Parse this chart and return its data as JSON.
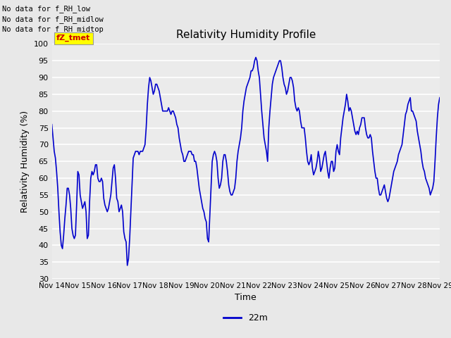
{
  "title": "Relativity Humidity Profile",
  "xlabel": "Time",
  "ylabel": "Relativity Humidity (%)",
  "ylim": [
    30,
    100
  ],
  "yticks": [
    30,
    35,
    40,
    45,
    50,
    55,
    60,
    65,
    70,
    75,
    80,
    85,
    90,
    95,
    100
  ],
  "line_color": "#0000cc",
  "line_width": 1.2,
  "bg_color": "#e8e8e8",
  "plot_bg_color": "#ebebeb",
  "legend_label": "22m",
  "legend_line_color": "#0000cc",
  "no_data_texts": [
    "No data for f_RH_low",
    "No data for f_RH_midlow",
    "No data for f_RH_midtop"
  ],
  "tz_tmet_label": "fZ_tmet",
  "x_start_day": 14,
  "x_end_day": 29,
  "x_tick_days": [
    14,
    15,
    16,
    17,
    18,
    19,
    20,
    21,
    22,
    23,
    24,
    25,
    26,
    27,
    28,
    29
  ],
  "x_tick_labels": [
    "Nov 14",
    "Nov 15",
    "Nov 16",
    "Nov 17",
    "Nov 18",
    "Nov 19",
    "Nov 20",
    "Nov 21",
    "Nov 22",
    "Nov 23",
    "Nov 24",
    "Nov 25",
    "Nov 26",
    "Nov 27",
    "Nov 28",
    "Nov 29"
  ],
  "humidity_values": [
    76,
    72,
    68,
    66,
    62,
    57,
    50,
    44,
    40,
    39,
    43,
    48,
    52,
    57,
    57,
    55,
    51,
    45,
    43,
    42,
    43,
    52,
    62,
    61,
    55,
    53,
    51,
    52,
    53,
    50,
    42,
    43,
    53,
    60,
    62,
    61,
    62,
    64,
    64,
    60,
    59,
    59,
    60,
    59,
    54,
    52,
    51,
    50,
    51,
    53,
    55,
    59,
    63,
    64,
    60,
    54,
    53,
    50,
    51,
    52,
    50,
    44,
    42,
    41,
    34,
    36,
    42,
    50,
    58,
    66,
    67,
    68,
    68,
    68,
    67,
    68,
    68,
    68,
    69,
    70,
    75,
    82,
    87,
    90,
    89,
    87,
    85,
    86,
    88,
    88,
    87,
    86,
    84,
    82,
    80,
    80,
    80,
    80,
    80,
    81,
    80,
    79,
    80,
    80,
    79,
    78,
    76,
    75,
    72,
    70,
    68,
    67,
    65,
    65,
    66,
    67,
    68,
    68,
    68,
    67,
    67,
    65,
    65,
    63,
    60,
    57,
    55,
    53,
    51,
    50,
    48,
    47,
    42,
    41,
    49,
    57,
    65,
    67,
    68,
    67,
    65,
    60,
    57,
    58,
    60,
    65,
    67,
    67,
    65,
    62,
    58,
    56,
    55,
    55,
    56,
    57,
    60,
    65,
    68,
    70,
    72,
    75,
    80,
    83,
    85,
    87,
    88,
    89,
    90,
    92,
    92,
    93,
    95,
    96,
    95,
    92,
    90,
    85,
    80,
    76,
    72,
    70,
    68,
    65,
    75,
    80,
    84,
    88,
    90,
    91,
    92,
    93,
    94,
    95,
    95,
    93,
    90,
    88,
    87,
    85,
    86,
    88,
    90,
    90,
    89,
    87,
    83,
    81,
    80,
    81,
    80,
    77,
    75,
    75,
    75,
    72,
    68,
    65,
    64,
    65,
    67,
    63,
    61,
    62,
    63,
    65,
    68,
    66,
    62,
    63,
    65,
    67,
    68,
    65,
    62,
    60,
    63,
    65,
    65,
    62,
    63,
    68,
    70,
    68,
    67,
    72,
    75,
    78,
    80,
    82,
    85,
    83,
    80,
    81,
    80,
    78,
    76,
    74,
    73,
    74,
    73,
    75,
    76,
    78,
    78,
    78,
    75,
    73,
    72,
    72,
    73,
    72,
    68,
    65,
    62,
    60,
    60,
    57,
    55,
    55,
    56,
    57,
    58,
    56,
    54,
    53,
    54,
    56,
    58,
    60,
    62,
    63,
    64,
    65,
    67,
    68,
    69,
    70,
    73,
    76,
    79,
    80,
    82,
    83,
    84,
    80,
    80,
    79,
    78,
    77,
    74,
    72,
    70,
    68,
    65,
    63,
    62,
    60,
    59,
    58,
    57,
    55,
    56,
    57,
    59,
    65,
    72,
    78,
    82,
    84
  ]
}
